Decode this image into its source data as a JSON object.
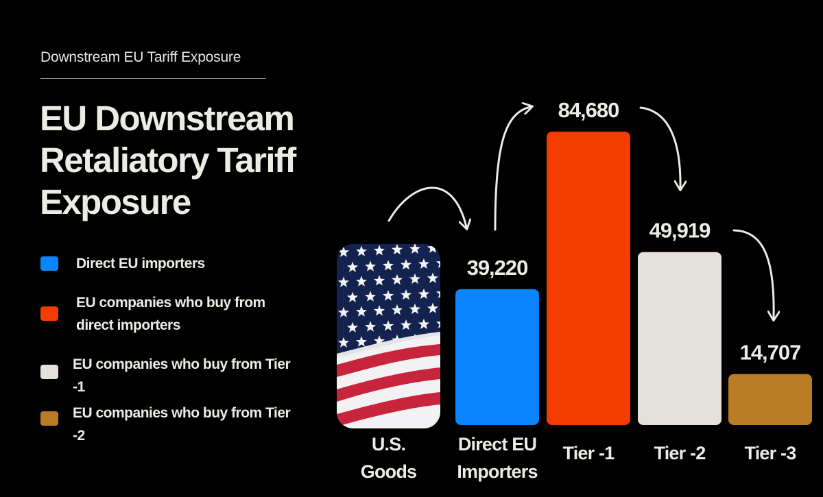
{
  "header": {
    "eyebrow": "Downstream EU Tariff Exposure",
    "title": "EU Downstream Retaliatory Tariff Exposure"
  },
  "legend": [
    {
      "label": "Direct EU importers",
      "color": "#0a84ff"
    },
    {
      "label": "EU companies who buy from direct importers",
      "color": "#f23c00"
    },
    {
      "label": "EU companies who buy from Tier -1",
      "color": "#e3e1d9"
    },
    {
      "label": "EU companies who buy from Tier -2",
      "color": "#b97c25"
    }
  ],
  "chart_data": {
    "type": "bar",
    "title": "EU Downstream Retaliatory Tariff Exposure",
    "categories": [
      "U.S. Goods",
      "Direct EU Importers",
      "Tier -1",
      "Tier -2",
      "Tier -3"
    ],
    "values": [
      null,
      39220,
      84680,
      49919,
      14707
    ],
    "value_labels": [
      "",
      "39,220",
      "84,680",
      "49,919",
      "14,707"
    ],
    "colors": [
      "#0b1650",
      "#0a84ff",
      "#f23c00",
      "#e3e1d9",
      "#b97c25"
    ],
    "ylim": [
      0,
      84680
    ],
    "xlabel": "",
    "ylabel": "",
    "grid": false,
    "legend_position": "left",
    "annotations": [
      "curved arrows link each tier to the next"
    ]
  },
  "icons": {
    "flag_image": "us-flag-image",
    "arrow": "curved-arrow-icon"
  }
}
